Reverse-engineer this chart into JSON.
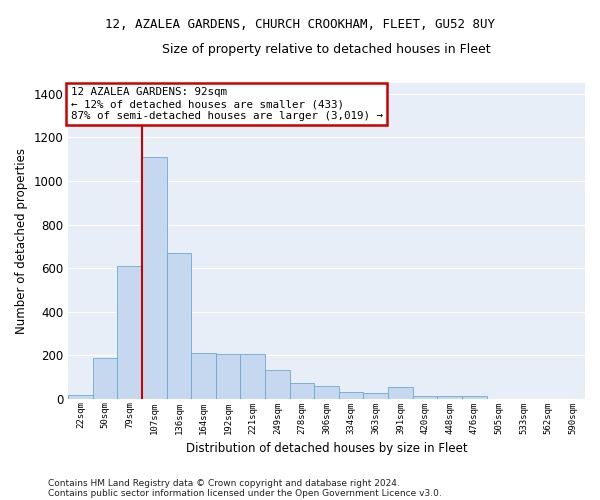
{
  "title1": "12, AZALEA GARDENS, CHURCH CROOKHAM, FLEET, GU52 8UY",
  "title2": "Size of property relative to detached houses in Fleet",
  "xlabel": "Distribution of detached houses by size in Fleet",
  "ylabel": "Number of detached properties",
  "bar_labels": [
    "22sqm",
    "50sqm",
    "79sqm",
    "107sqm",
    "136sqm",
    "164sqm",
    "192sqm",
    "221sqm",
    "249sqm",
    "278sqm",
    "306sqm",
    "334sqm",
    "363sqm",
    "391sqm",
    "420sqm",
    "448sqm",
    "476sqm",
    "505sqm",
    "533sqm",
    "562sqm",
    "590sqm"
  ],
  "bar_values": [
    18,
    185,
    610,
    1110,
    670,
    210,
    205,
    205,
    130,
    70,
    60,
    30,
    25,
    55,
    12,
    10,
    12,
    0,
    0,
    0,
    0
  ],
  "bar_color": "#c5d8f0",
  "bar_edgecolor": "#6aabd2",
  "vline_color": "#cc0000",
  "annotation_text": "12 AZALEA GARDENS: 92sqm\n← 12% of detached houses are smaller (433)\n87% of semi-detached houses are larger (3,019) →",
  "annotation_box_facecolor": "#ffffff",
  "annotation_box_edgecolor": "#cc0000",
  "ylim": [
    0,
    1450
  ],
  "yticks": [
    0,
    200,
    400,
    600,
    800,
    1000,
    1200,
    1400
  ],
  "background_color": "#e8eef8",
  "grid_color": "#ffffff",
  "footer1": "Contains HM Land Registry data © Crown copyright and database right 2024.",
  "footer2": "Contains public sector information licensed under the Open Government Licence v3.0."
}
